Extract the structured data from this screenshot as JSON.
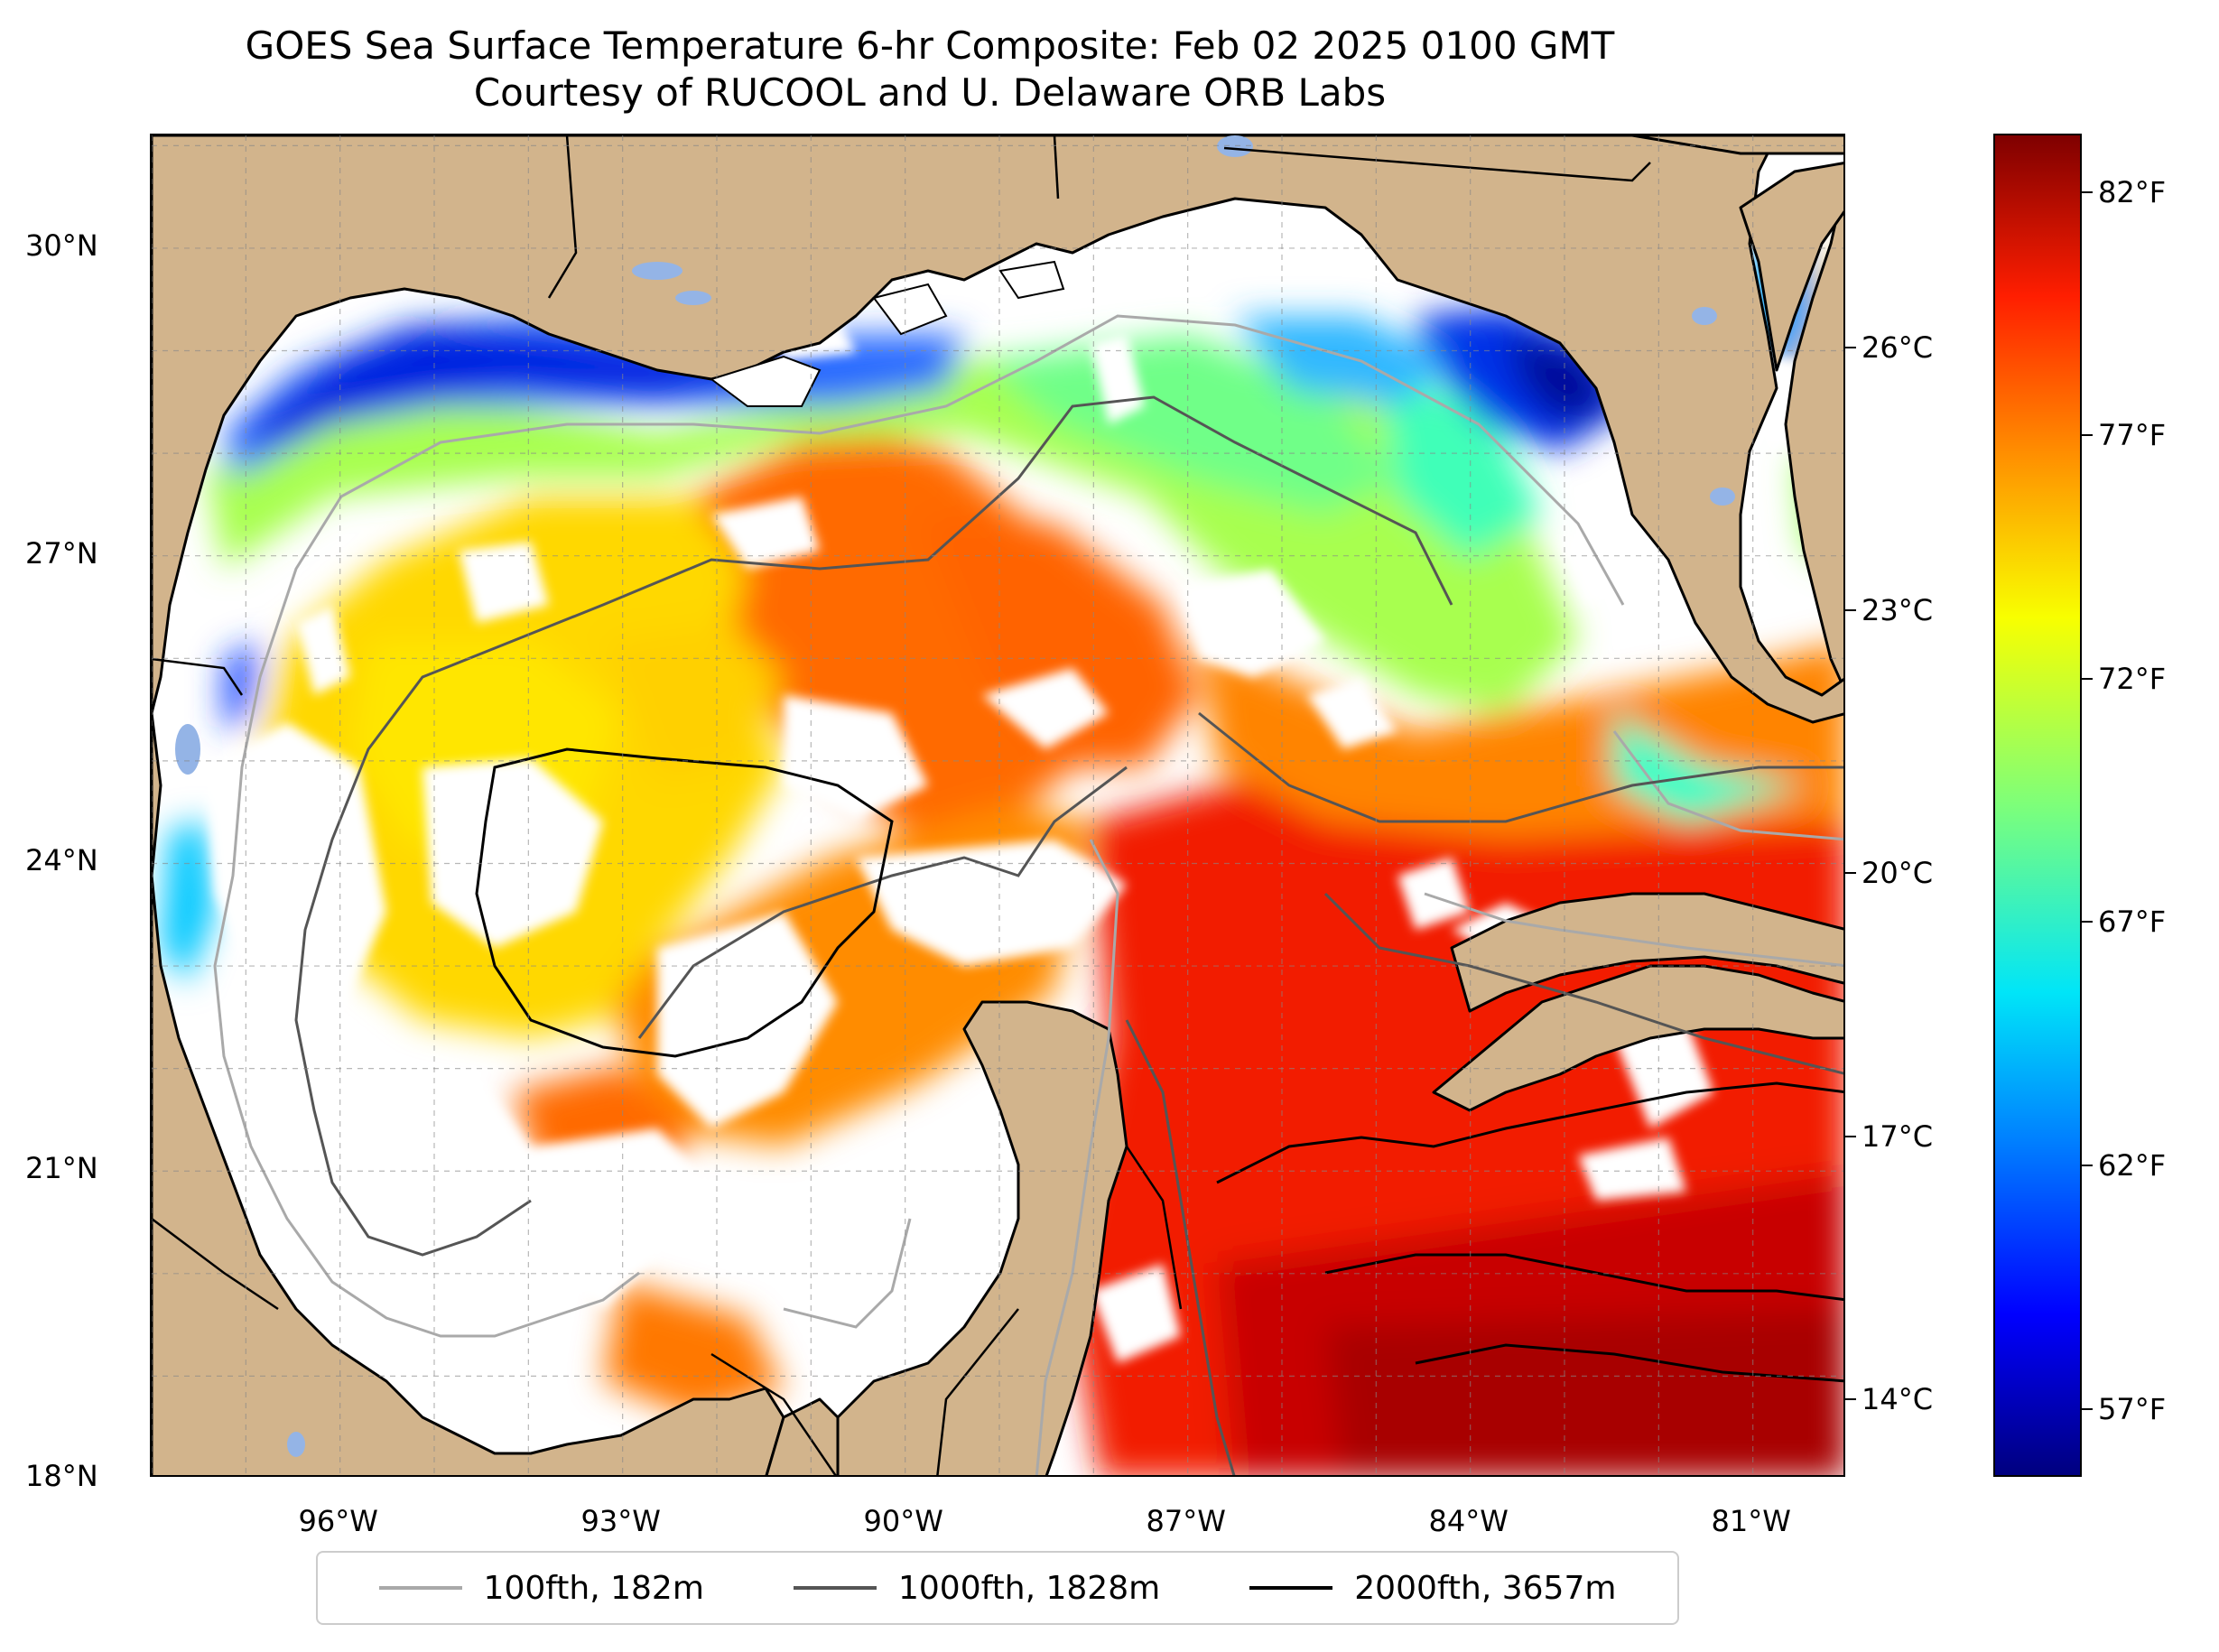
{
  "title": {
    "line1": "GOES Sea Surface Temperature 6-hr Composite: Feb 02 2025 0100 GMT",
    "line2": "Courtesy of RUCOOL and U. Delaware ORB Labs"
  },
  "map": {
    "region": "Gulf of Mexico",
    "lat_range": [
      18,
      31.1
    ],
    "lon_range": [
      -98,
      -80
    ],
    "land_color": "#d2b48c",
    "water_nodata_color": "#ffffff",
    "grid": true,
    "lat_ticks": [
      {
        "value": 30,
        "label": "30°N"
      },
      {
        "value": 27,
        "label": "27°N"
      },
      {
        "value": 24,
        "label": "24°N"
      },
      {
        "value": 21,
        "label": "21°N"
      },
      {
        "value": 18,
        "label": "18°N"
      }
    ],
    "lon_ticks": [
      {
        "value": -96,
        "label": "96°W"
      },
      {
        "value": -93,
        "label": "93°W"
      },
      {
        "value": -90,
        "label": "90°W"
      },
      {
        "value": -87,
        "label": "87°W"
      },
      {
        "value": -84,
        "label": "84°W"
      },
      {
        "value": -81,
        "label": "81°W"
      }
    ]
  },
  "colorbar": {
    "colormap": "jet",
    "range_f": [
      55.6,
      83.2
    ],
    "fahrenheit_ticks": [
      {
        "value": 82,
        "label": "82°F"
      },
      {
        "value": 77,
        "label": "77°F"
      },
      {
        "value": 72,
        "label": "72°F"
      },
      {
        "value": 67,
        "label": "67°F"
      },
      {
        "value": 62,
        "label": "62°F"
      },
      {
        "value": 57,
        "label": "57°F"
      }
    ],
    "celsius_ticks": [
      {
        "value": 26,
        "label": "26°C"
      },
      {
        "value": 23,
        "label": "23°C"
      },
      {
        "value": 20,
        "label": "20°C"
      },
      {
        "value": 17,
        "label": "17°C"
      },
      {
        "value": 14,
        "label": "14°C"
      }
    ]
  },
  "legend": {
    "placement": "bottom-center",
    "items": [
      {
        "label": "100fth, 182m",
        "color": "#a9a9a9"
      },
      {
        "label": "1000fth, 1828m",
        "color": "#555555"
      },
      {
        "label": "2000fth, 3657m",
        "color": "#000000"
      }
    ]
  }
}
